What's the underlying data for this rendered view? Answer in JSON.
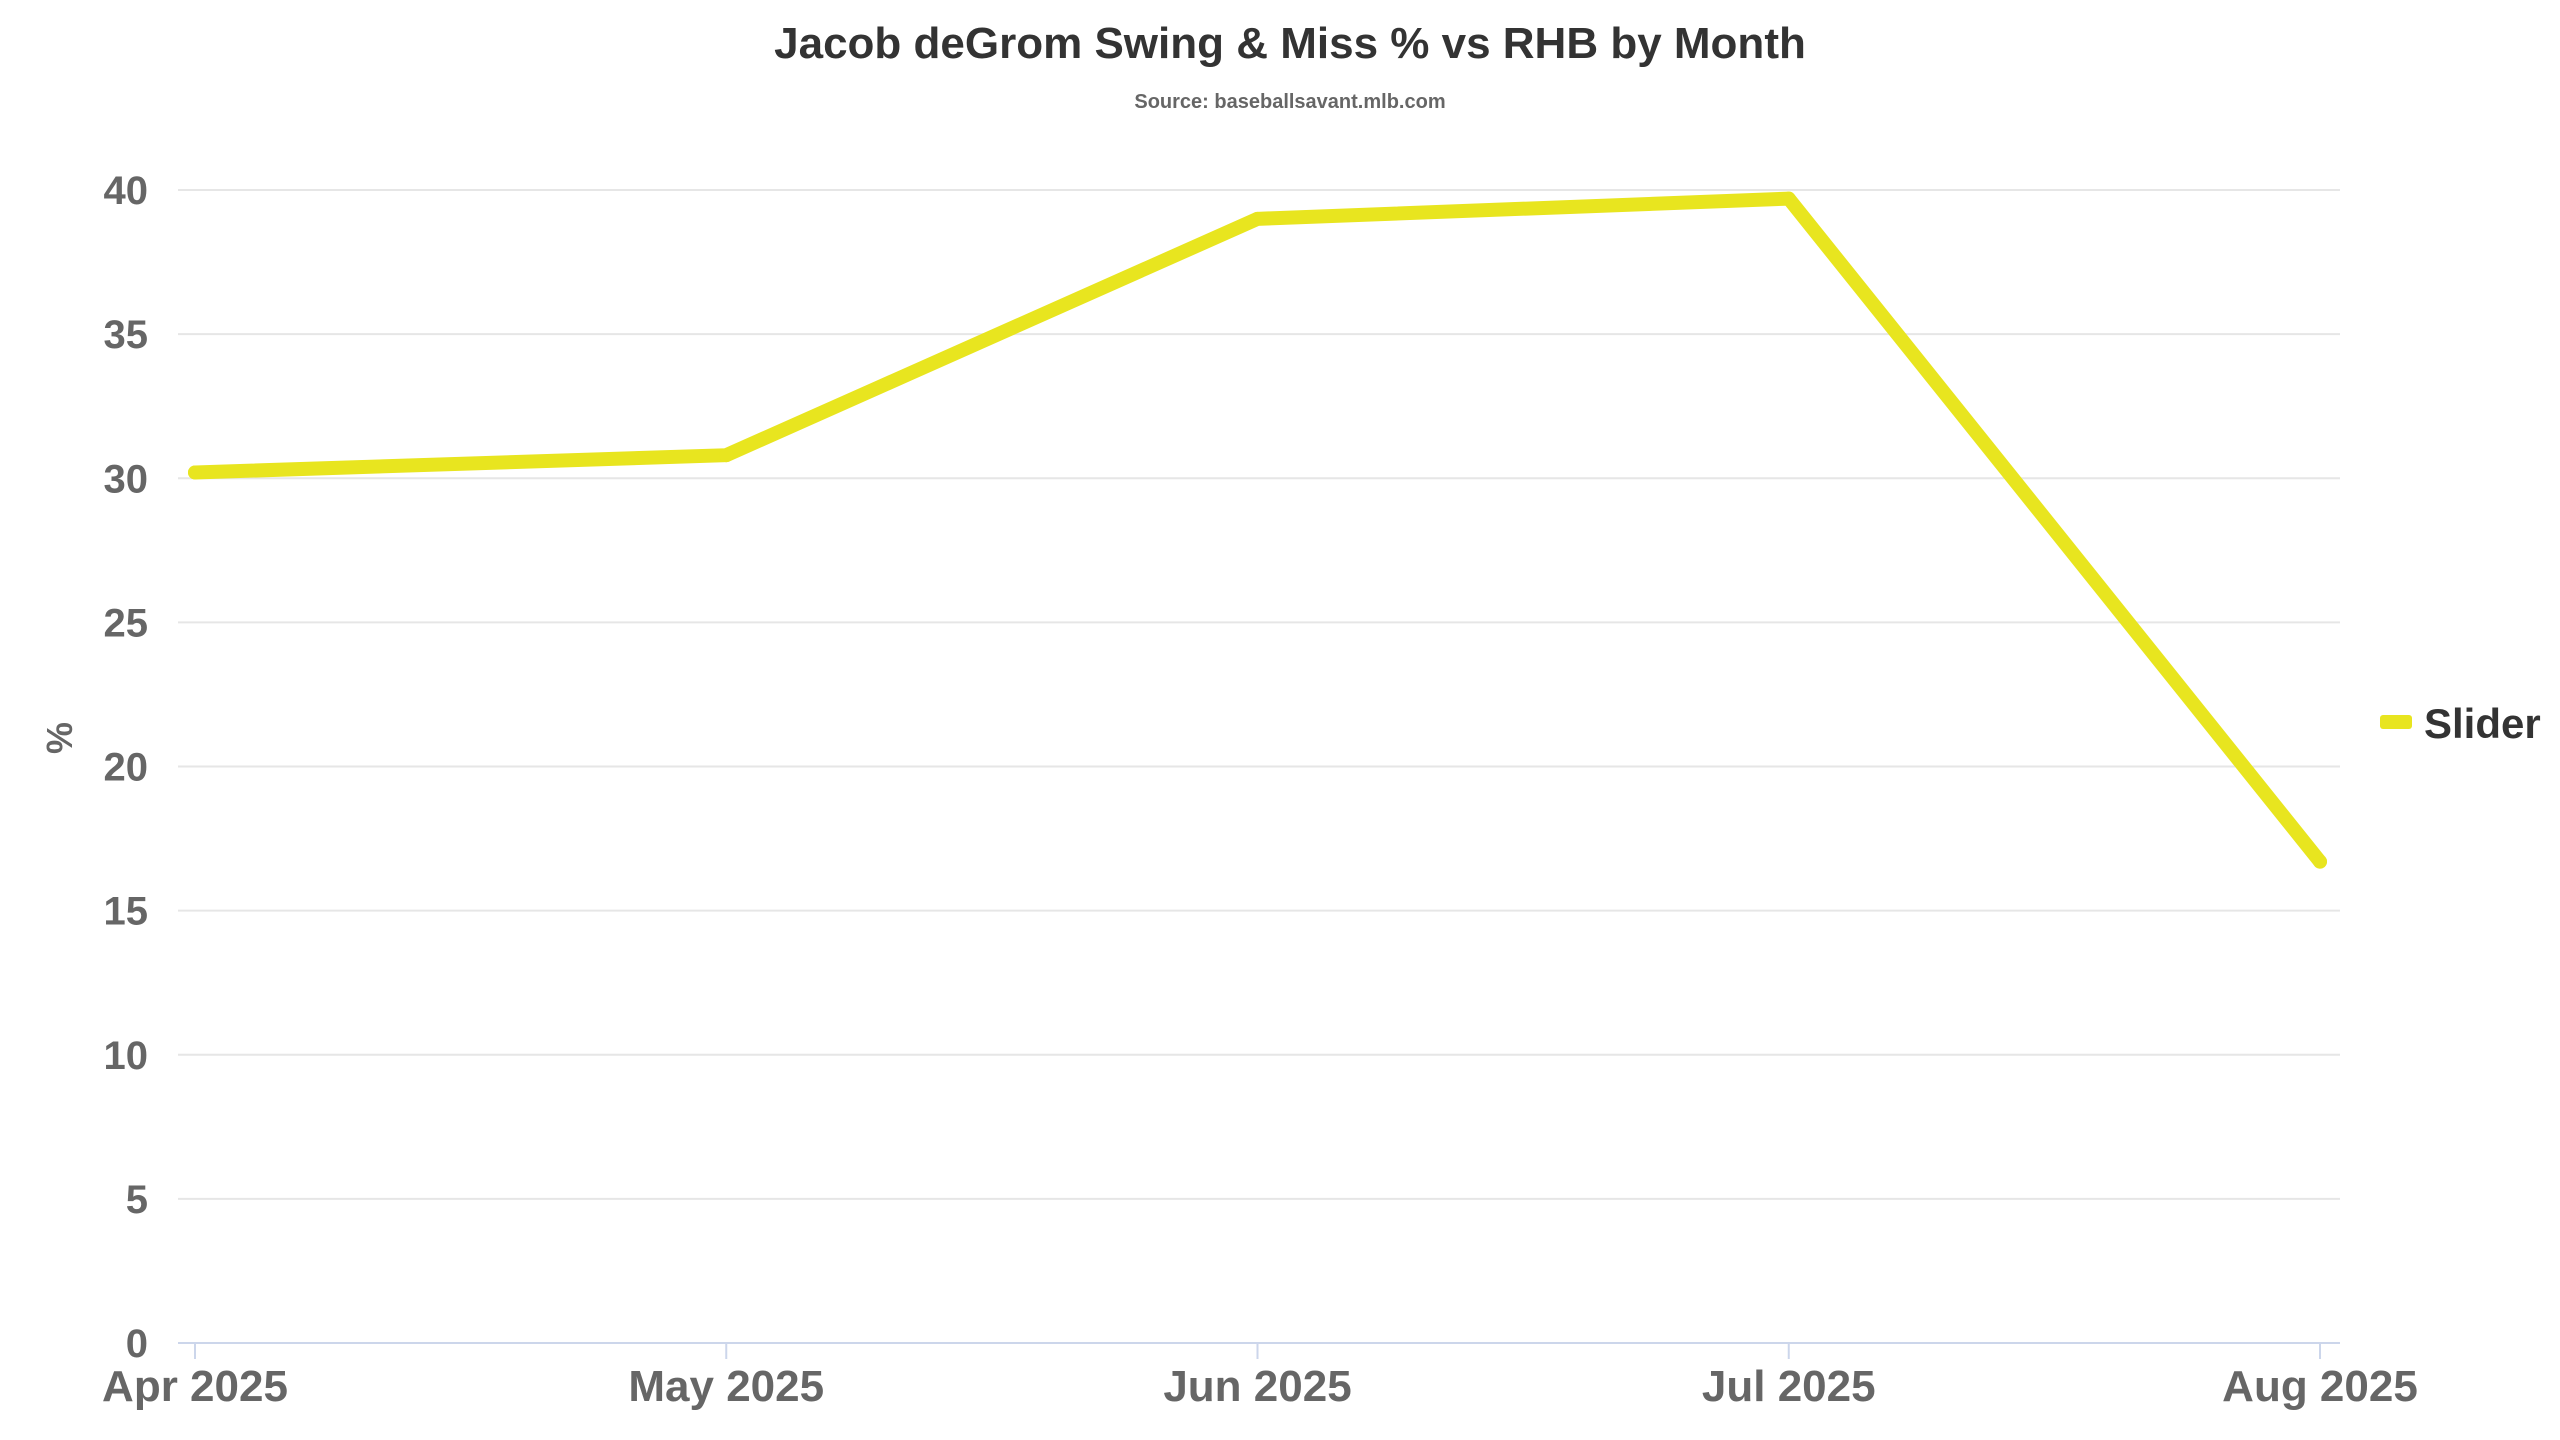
{
  "chart_data": {
    "type": "line",
    "title": "Jacob deGrom Swing & Miss % vs RHB by Month",
    "subtitle": "Source: baseballsavant.mlb.com",
    "xlabel": "",
    "ylabel": "%",
    "categories": [
      "Apr 2025",
      "May 2025",
      "Jun 2025",
      "Jul 2025",
      "Aug 2025"
    ],
    "ylim": [
      0,
      40
    ],
    "yticks": [
      "0",
      "5",
      "10",
      "15",
      "20",
      "25",
      "30",
      "35",
      "40"
    ],
    "grid": true,
    "legend_position": "right",
    "series": [
      {
        "name": "Slider",
        "color": "#e8e51f",
        "values": [
          30.2,
          30.8,
          39.0,
          39.7,
          16.7
        ]
      }
    ]
  }
}
